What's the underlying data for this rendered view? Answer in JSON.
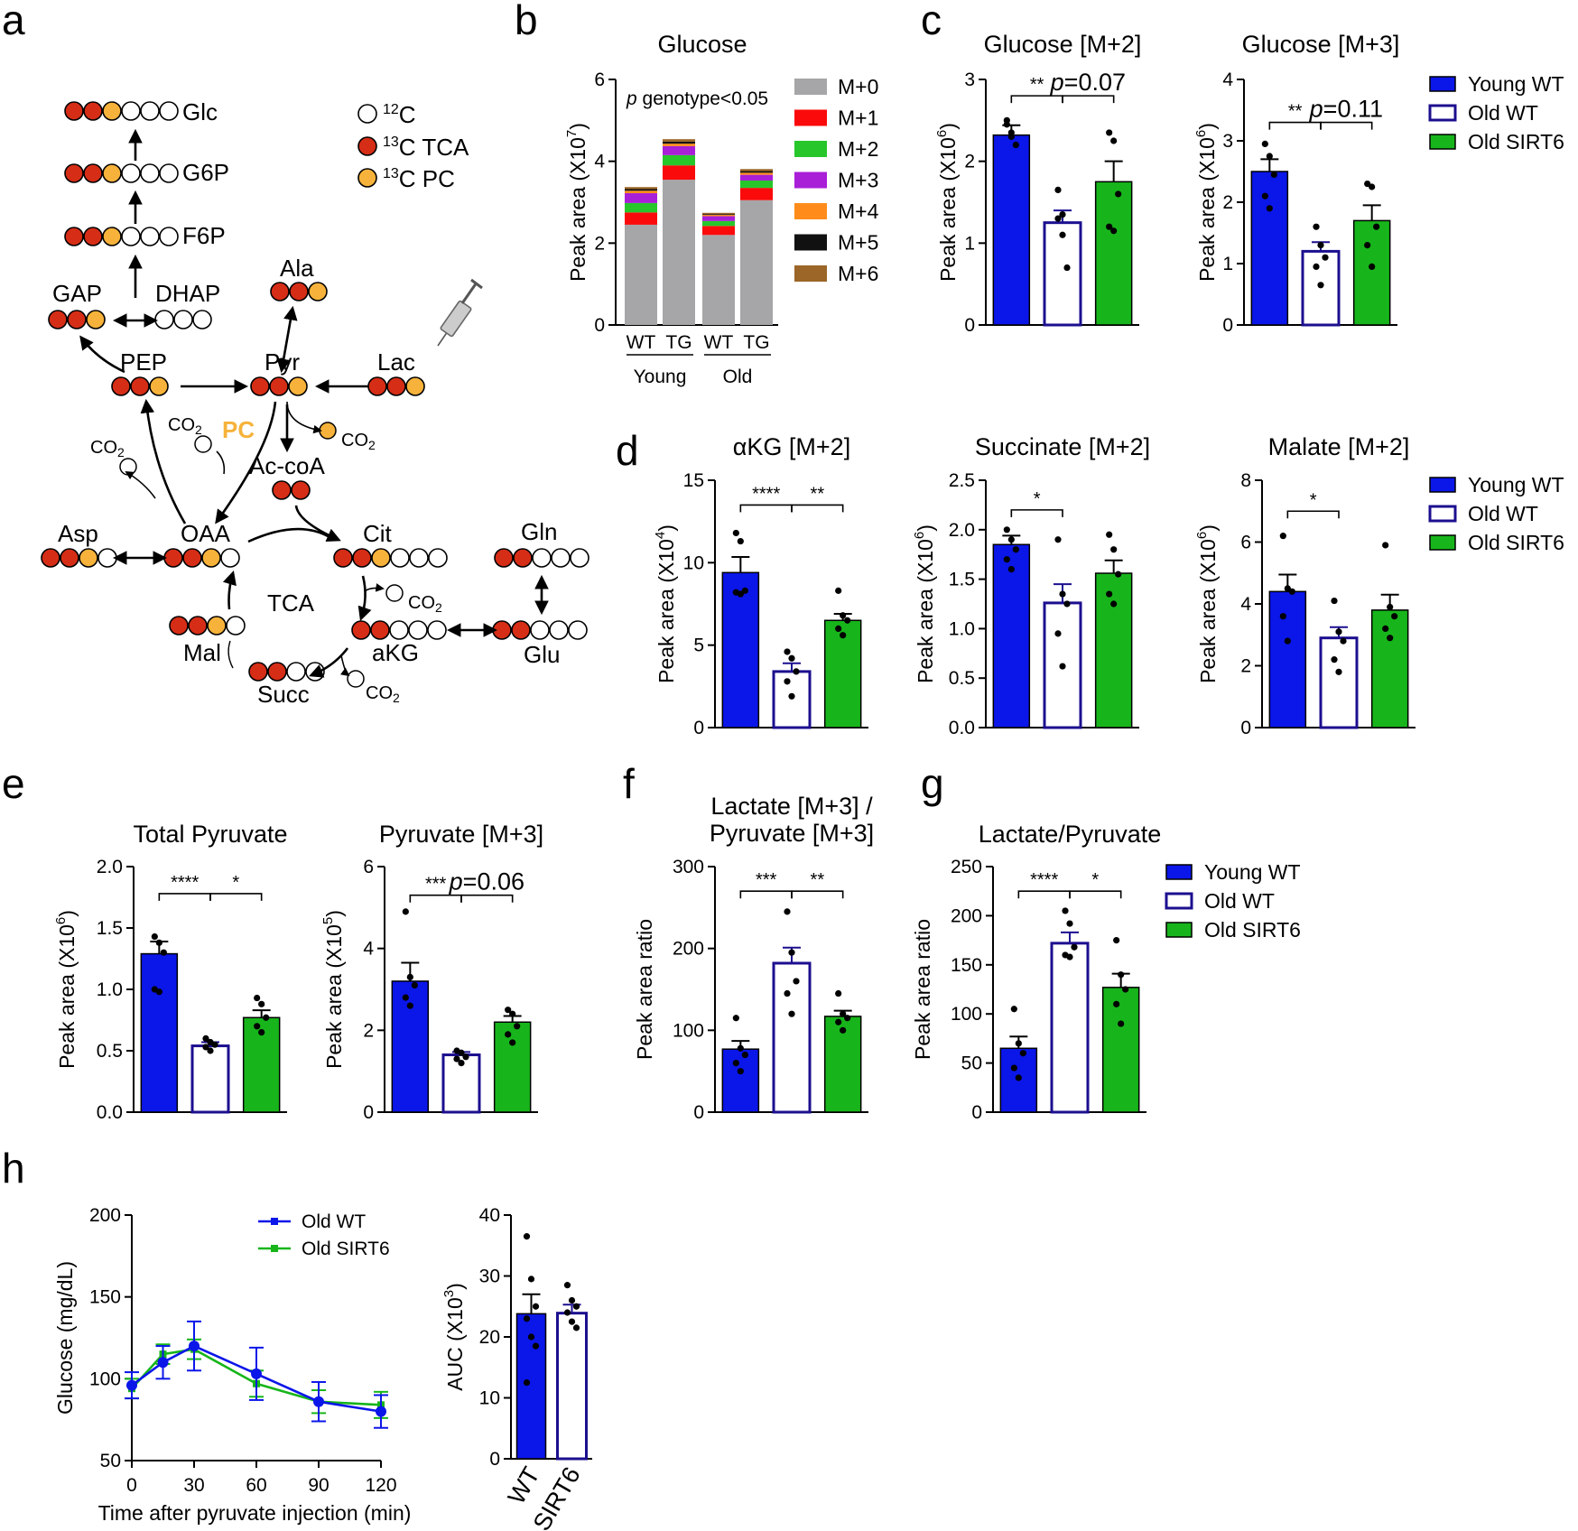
{
  "panel_letters": [
    "a",
    "b",
    "c",
    "d",
    "e",
    "f",
    "g",
    "h"
  ],
  "colors": {
    "young_wt": "#0b16e8",
    "old_wt": "#ffffff",
    "old_wt_edge": "#1c0f8f",
    "old_sirt6": "#17b51b",
    "c12": "#ffffff",
    "c13_tca": "#d62d16",
    "c13_pc": "#f6b23a",
    "pc_label": "#f6b23a"
  },
  "legend_groups": [
    "Young WT",
    "Old WT",
    "Old SIRT6"
  ],
  "panel_a": {
    "circle_legend": {
      "c12_label": "C",
      "c12_mass": "12",
      "tca_label": "C TCA",
      "tca_mass": "13",
      "pc_label": "C PC",
      "pc_mass": "13"
    },
    "metabolites": {
      "glc": "Glc",
      "g6p": "G6P",
      "f6p": "F6P",
      "gap": "GAP",
      "dhap": "DHAP",
      "ala": "Ala",
      "pep": "PEP",
      "pyr": "Pyr",
      "lac": "Lac",
      "acoa": "Ac-coA",
      "asp": "Asp",
      "oaa": "OAA",
      "cit": "Cit",
      "gln": "Gln",
      "glu": "Glu",
      "akg": "aKG",
      "mal": "Mal",
      "succ": "Succ"
    },
    "cycle_label": "TCA",
    "enzyme_label": "PC",
    "co2": "CO",
    "co2_sub": "2"
  },
  "chart_data": [
    {
      "id": "b",
      "type": "bar",
      "stacked": true,
      "title": "Glucose",
      "ylabel": "Peak area (X10",
      "ylabel_exp": "7",
      "ylabel_close": ")",
      "ylim": [
        0,
        6
      ],
      "yticks": [
        "0",
        "2",
        "4",
        "6"
      ],
      "categories": [
        "WT",
        "TG",
        "WT",
        "TG"
      ],
      "groups": [
        "Young",
        "Old"
      ],
      "annotation_italic": "p",
      "annotation": " genotype<0.05",
      "series": [
        {
          "name": "M+0",
          "color": "#a6a6a8",
          "values": [
            2.45,
            3.55,
            2.2,
            3.05
          ]
        },
        {
          "name": "M+1",
          "color": "#fa0a0a",
          "values": [
            0.3,
            0.35,
            0.22,
            0.3
          ]
        },
        {
          "name": "M+2",
          "color": "#27c62b",
          "values": [
            0.23,
            0.25,
            0.12,
            0.18
          ]
        },
        {
          "name": "M+3",
          "color": "#a81fd7",
          "values": [
            0.24,
            0.22,
            0.12,
            0.14
          ]
        },
        {
          "name": "M+4",
          "color": "#ff8c1a",
          "values": [
            0.06,
            0.06,
            0.03,
            0.05
          ]
        },
        {
          "name": "M+5",
          "color": "#111111",
          "values": [
            0.04,
            0.05,
            0.02,
            0.04
          ]
        },
        {
          "name": "M+6",
          "color": "#9b6627",
          "values": [
            0.05,
            0.06,
            0.03,
            0.05
          ]
        }
      ]
    },
    {
      "id": "c1",
      "type": "bar",
      "title": "Glucose [M+2]",
      "ylabel": "Peak area (X10",
      "ylabel_exp": "6",
      "ylabel_close": ")",
      "ylim": [
        0,
        3
      ],
      "yticks": [
        "0",
        "1",
        "2",
        "3"
      ],
      "categories": [
        "Young WT",
        "Old WT",
        "Old SIRT6"
      ],
      "values": [
        2.32,
        1.25,
        1.75
      ],
      "errors": [
        0.12,
        0.15,
        0.25
      ],
      "points": [
        [
          2.5,
          2.3,
          2.2,
          2.45,
          2.35
        ],
        [
          1.65,
          1.1,
          0.7,
          1.3,
          1.35
        ],
        [
          2.35,
          2.25,
          1.6,
          1.2,
          1.15
        ]
      ],
      "sig": [
        {
          "a": 0,
          "b": 1,
          "y": 2.8,
          "label": "**"
        },
        {
          "a": 1,
          "b": 2,
          "y": 2.8,
          "label": "=0.07",
          "italic": "p"
        }
      ]
    },
    {
      "id": "c2",
      "type": "bar",
      "title": "Glucose [M+3]",
      "ylabel": "Peak area (X10",
      "ylabel_exp": "6",
      "ylabel_close": ")",
      "ylim": [
        0,
        4
      ],
      "yticks": [
        "0",
        "1",
        "2",
        "3",
        "4"
      ],
      "categories": [
        "Young WT",
        "Old WT",
        "Old SIRT6"
      ],
      "values": [
        2.5,
        1.2,
        1.7
      ],
      "errors": [
        0.2,
        0.15,
        0.25
      ],
      "points": [
        [
          2.95,
          2.75,
          2.45,
          2.1,
          1.9
        ],
        [
          1.6,
          1.3,
          1.1,
          0.95,
          0.65
        ],
        [
          2.3,
          2.25,
          1.6,
          1.3,
          0.95
        ]
      ],
      "sig": [
        {
          "a": 0,
          "b": 1,
          "y": 3.3,
          "label": "**"
        },
        {
          "a": 1,
          "b": 2,
          "y": 3.3,
          "label": "=0.11",
          "italic": "p"
        }
      ]
    },
    {
      "id": "d1",
      "type": "bar",
      "title": "αKG [M+2]",
      "ylabel": "Peak area (X10",
      "ylabel_exp": "4",
      "ylabel_close": ")",
      "ylim": [
        0,
        15
      ],
      "yticks": [
        "0",
        "5",
        "10",
        "15"
      ],
      "categories": [
        "Young WT",
        "Old WT",
        "Old SIRT6"
      ],
      "values": [
        9.4,
        3.4,
        6.5
      ],
      "errors": [
        0.95,
        0.5,
        0.4
      ],
      "points": [
        [
          11.8,
          11.3,
          8.3,
          8.2,
          8.1
        ],
        [
          4.6,
          4.2,
          3.4,
          2.8,
          1.9
        ],
        [
          8.3,
          6.8,
          6.5,
          6.0,
          5.6
        ]
      ],
      "sig": [
        {
          "a": 0,
          "b": 1,
          "y": 13.5,
          "label": "****"
        },
        {
          "a": 1,
          "b": 2,
          "y": 13.5,
          "label": "**"
        }
      ]
    },
    {
      "id": "d2",
      "type": "bar",
      "title": "Succinate [M+2]",
      "ylabel": "Peak area (X10",
      "ylabel_exp": "6",
      "ylabel_close": ")",
      "ylim": [
        0,
        2.5
      ],
      "yticks": [
        "0.0",
        "0.5",
        "1.0",
        "1.5",
        "2.0",
        "2.5"
      ],
      "categories": [
        "Young WT",
        "Old WT",
        "Old SIRT6"
      ],
      "values": [
        1.85,
        1.26,
        1.56
      ],
      "errors": [
        0.09,
        0.19,
        0.13
      ],
      "points": [
        [
          2.0,
          1.9,
          1.8,
          1.7,
          1.6
        ],
        [
          1.9,
          1.35,
          1.25,
          0.95,
          0.62
        ],
        [
          1.95,
          1.8,
          1.55,
          1.35,
          1.25
        ]
      ],
      "sig": [
        {
          "a": 0,
          "b": 1,
          "y": 2.2,
          "label": "*"
        }
      ]
    },
    {
      "id": "d3",
      "type": "bar",
      "title": "Malate [M+2]",
      "ylabel": "Peak area (X10",
      "ylabel_exp": "6",
      "ylabel_close": ")",
      "ylim": [
        0,
        8
      ],
      "yticks": [
        "0",
        "2",
        "4",
        "6",
        "8"
      ],
      "categories": [
        "Young WT",
        "Old WT",
        "Old SIRT6"
      ],
      "values": [
        4.4,
        2.9,
        3.8
      ],
      "errors": [
        0.55,
        0.35,
        0.5
      ],
      "points": [
        [
          6.2,
          4.5,
          4.4,
          3.6,
          2.8
        ],
        [
          4.1,
          3.1,
          2.8,
          2.2,
          1.8
        ],
        [
          5.9,
          3.9,
          3.6,
          3.2,
          2.9
        ]
      ],
      "sig": [
        {
          "a": 0,
          "b": 1,
          "y": 7.0,
          "label": "*"
        }
      ]
    },
    {
      "id": "e1",
      "type": "bar",
      "title": "Total Pyruvate",
      "ylabel": "Peak area (X10",
      "ylabel_exp": "6",
      "ylabel_close": ")",
      "ylim": [
        0,
        2.0
      ],
      "yticks": [
        "0.0",
        "0.5",
        "1.0",
        "1.5",
        "2.0"
      ],
      "categories": [
        "Young WT",
        "Old WT",
        "Old SIRT6"
      ],
      "values": [
        1.29,
        0.54,
        0.77
      ],
      "errors": [
        0.1,
        0.03,
        0.06
      ],
      "points": [
        [
          1.43,
          1.38,
          1.3,
          1.0,
          0.98
        ],
        [
          0.6,
          0.57,
          0.55,
          0.53,
          0.5
        ],
        [
          0.93,
          0.88,
          0.77,
          0.7,
          0.65
        ]
      ],
      "sig": [
        {
          "a": 0,
          "b": 1,
          "y": 1.78,
          "label": "****"
        },
        {
          "a": 1,
          "b": 2,
          "y": 1.78,
          "label": "*"
        }
      ]
    },
    {
      "id": "e2",
      "type": "bar",
      "title": "Pyruvate [M+3]",
      "ylabel": "Peak area (X10",
      "ylabel_exp": "5",
      "ylabel_close": ")",
      "ylim": [
        0,
        6
      ],
      "yticks": [
        "0",
        "2",
        "4",
        "6"
      ],
      "categories": [
        "Young WT",
        "Old WT",
        "Old SIRT6"
      ],
      "values": [
        3.2,
        1.4,
        2.2
      ],
      "errors": [
        0.45,
        0.07,
        0.15
      ],
      "points": [
        [
          4.9,
          3.3,
          3.1,
          2.8,
          2.6
        ],
        [
          1.5,
          1.45,
          1.35,
          1.3,
          1.2
        ],
        [
          2.5,
          2.4,
          2.1,
          1.9,
          1.7
        ]
      ],
      "sig": [
        {
          "a": 0,
          "b": 1,
          "y": 5.3,
          "label": "***"
        },
        {
          "a": 1,
          "b": 2,
          "y": 5.3,
          "label": "=0.06",
          "italic": "p"
        }
      ]
    },
    {
      "id": "f",
      "type": "bar",
      "title": "Lactate [M+3] /",
      "title2": "Pyruvate [M+3]",
      "ylabel": "Peak area ratio",
      "ylim": [
        0,
        300
      ],
      "yticks": [
        "0",
        "100",
        "200",
        "300"
      ],
      "categories": [
        "Young WT",
        "Old WT",
        "Old SIRT6"
      ],
      "values": [
        77,
        182,
        117
      ],
      "errors": [
        10,
        19,
        7
      ],
      "points": [
        [
          115,
          78,
          70,
          60,
          50
        ],
        [
          245,
          195,
          160,
          145,
          120
        ],
        [
          145,
          120,
          115,
          110,
          100
        ]
      ],
      "sig": [
        {
          "a": 0,
          "b": 1,
          "y": 270,
          "label": "***"
        },
        {
          "a": 1,
          "b": 2,
          "y": 270,
          "label": "**"
        }
      ]
    },
    {
      "id": "g",
      "type": "bar",
      "title": "Lactate/Pyruvate",
      "ylabel": "Peak area ratio",
      "ylim": [
        0,
        250
      ],
      "yticks": [
        "0",
        "50",
        "100",
        "150",
        "200",
        "250"
      ],
      "categories": [
        "Young WT",
        "Old WT",
        "Old SIRT6"
      ],
      "values": [
        65,
        172,
        127
      ],
      "errors": [
        12,
        11,
        14
      ],
      "points": [
        [
          105,
          70,
          60,
          45,
          35
        ],
        [
          205,
          192,
          168,
          160,
          158
        ],
        [
          175,
          140,
          125,
          110,
          90
        ]
      ],
      "sig": [
        {
          "a": 0,
          "b": 1,
          "y": 225,
          "label": "****"
        },
        {
          "a": 1,
          "b": 2,
          "y": 225,
          "label": "*"
        }
      ]
    },
    {
      "id": "h1",
      "type": "line",
      "xlabel": "Time after pyruvate injection (min)",
      "ylabel": "Glucose (mg/dL)",
      "xlim": [
        0,
        120
      ],
      "ylim": [
        50,
        200
      ],
      "xticks": [
        "0",
        "30",
        "60",
        "90",
        "120"
      ],
      "yticks": [
        "50",
        "100",
        "150",
        "200"
      ],
      "x": [
        0,
        15,
        30,
        60,
        90,
        120
      ],
      "series": [
        {
          "name": "Old WT",
          "color": "#0b16e8",
          "values": [
            96,
            110,
            120,
            103,
            86,
            80
          ],
          "errors": [
            8,
            10,
            15,
            16,
            12,
            10
          ]
        },
        {
          "name": "Old SIRT6",
          "color": "#17b51b",
          "values": [
            94,
            115,
            118,
            97,
            86,
            84
          ],
          "errors": [
            6,
            6,
            6,
            8,
            7,
            8
          ]
        }
      ]
    },
    {
      "id": "h2",
      "type": "bar",
      "title": "",
      "ylabel": "AUC (X10",
      "ylabel_exp": "3",
      "ylabel_close": ")",
      "ylim": [
        0,
        40
      ],
      "yticks": [
        "0",
        "10",
        "20",
        "30",
        "40"
      ],
      "categories": [
        "WT",
        "SIRT6"
      ],
      "values": [
        23.8,
        23.9
      ],
      "errors": [
        3.2,
        1.4
      ],
      "points": [
        [
          36.5,
          29.5,
          25,
          23,
          20,
          18.5,
          12.5
        ],
        [
          28.5,
          26,
          25,
          24,
          22.5,
          21.5
        ]
      ],
      "sig": []
    }
  ]
}
